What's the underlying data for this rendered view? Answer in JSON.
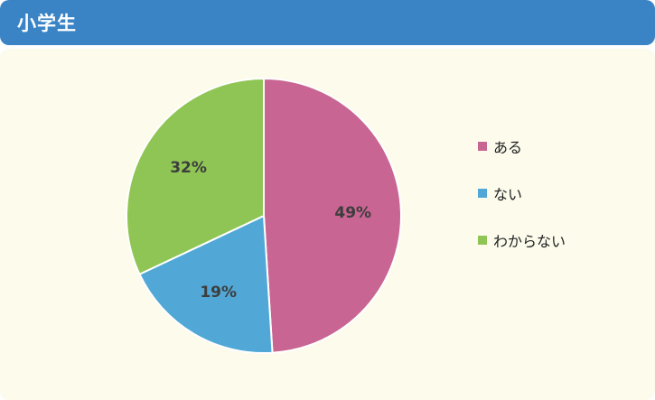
{
  "header": {
    "title": "小学生"
  },
  "colors": {
    "header_bg": "#3a84c6",
    "panel_bg": "#fcfbec"
  },
  "chart_data": {
    "type": "pie",
    "title": "",
    "slices": [
      {
        "label": "ある",
        "value": 49,
        "display": "49%",
        "color": "#c86592"
      },
      {
        "label": "ない",
        "value": 19,
        "display": "19%",
        "color": "#51a8d6"
      },
      {
        "label": "わからない",
        "value": 32,
        "display": "32%",
        "color": "#8fc554"
      }
    ],
    "start_angle": "12 o'clock",
    "direction": "clockwise",
    "legend_position": "right"
  }
}
